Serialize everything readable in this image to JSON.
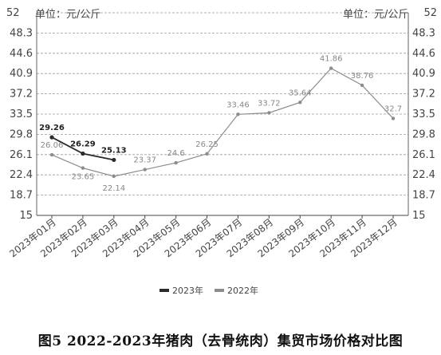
{
  "chart_data": {
    "type": "line",
    "title": "",
    "unit_label_left": "单位：元/公斤",
    "unit_label_right": "单位：元/公斤",
    "categories": [
      "2023年01月",
      "2023年02月",
      "2023年03月",
      "2023年04月",
      "2023年05月",
      "2023年06月",
      "2023年07月",
      "2023年08月",
      "2023年09月",
      "2023年10月",
      "2023年11月",
      "2023年12月"
    ],
    "ylim": [
      15,
      52
    ],
    "yticks": [
      "15",
      "18.7",
      "22.4",
      "26.1",
      "29.8",
      "33.5",
      "37.2",
      "40.9",
      "44.6",
      "48.3",
      "52"
    ],
    "grid": "horizontal dashed",
    "legend_position": "bottom",
    "series": [
      {
        "name": "2023年",
        "color": "#2b2b2b",
        "values": [
          29.26,
          26.29,
          25.13,
          null,
          null,
          null,
          null,
          null,
          null,
          null,
          null,
          null
        ],
        "labels": [
          "29.26",
          "26.29",
          "25.13",
          "",
          "",
          "",
          "",
          "",
          "",
          "",
          "",
          ""
        ]
      },
      {
        "name": "2022年",
        "color": "#8c8c8c",
        "values": [
          26.06,
          23.65,
          22.14,
          23.37,
          24.6,
          26.25,
          33.46,
          33.72,
          35.64,
          41.86,
          38.76,
          32.7
        ],
        "labels": [
          "26.06",
          "23.65",
          "22.14",
          "23.37",
          "24.6",
          "26.25",
          "33.46",
          "33.72",
          "35.64",
          "41.86",
          "38.76",
          "32.7"
        ]
      }
    ]
  },
  "caption": "图5 2022-2023年猪肉（去骨统肉）集贸市场价格对比图"
}
